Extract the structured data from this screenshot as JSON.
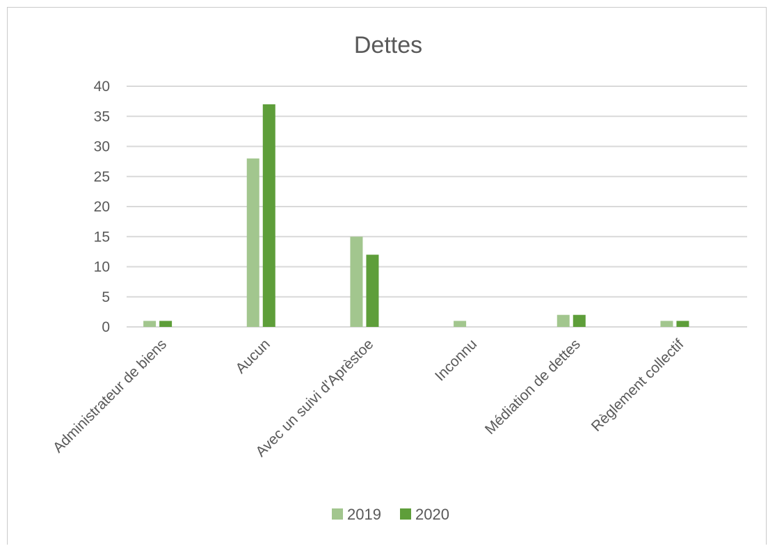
{
  "chart_data": {
    "type": "bar",
    "title": "Dettes",
    "xlabel": "",
    "ylabel": "",
    "categories": [
      "Administrateur de biens",
      "Aucun",
      "Avec un suivi d'Aprèstoe",
      "Inconnu",
      "Médiation de dettes",
      "Règlement collectif"
    ],
    "series": [
      {
        "name": "2019",
        "values": [
          1,
          28,
          15,
          1,
          2,
          1
        ],
        "color": "#a2c68e"
      },
      {
        "name": "2020",
        "values": [
          1,
          37,
          12,
          0,
          2,
          1
        ],
        "color": "#5e9e3a"
      }
    ],
    "ylim": [
      0,
      40
    ],
    "yticks": [
      "0",
      "5",
      "10",
      "15",
      "20",
      "25",
      "30",
      "35",
      "40"
    ],
    "grid": true,
    "legend_position": "bottom",
    "gridline_color": "#d9d9d9",
    "text_color": "#595959"
  }
}
